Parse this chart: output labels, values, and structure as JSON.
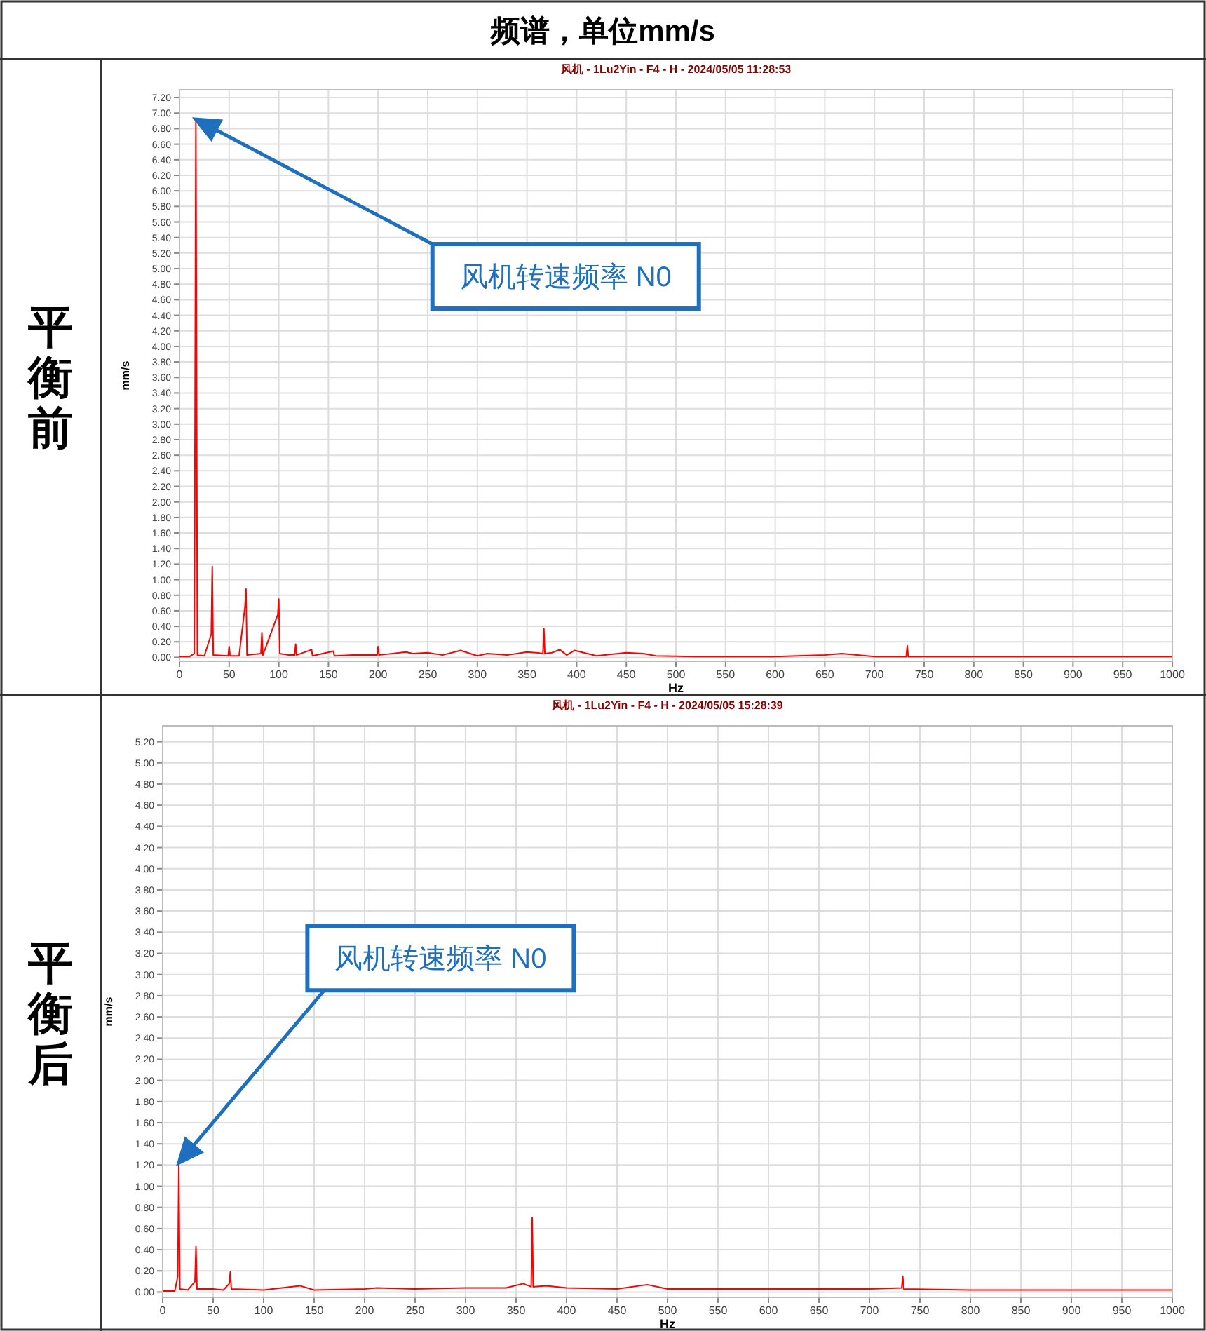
{
  "chart_data": [
    {
      "type": "line",
      "title": "风机 - 1Lu2Yin - F4 - H - 2024/05/05 11:28:53",
      "xlabel": "Hz",
      "ylabel": "mm/s",
      "grid": true,
      "annotations": [
        "频谱，单位mm/s",
        "平衡前",
        "风机转速频率 N0"
      ],
      "xlim": [
        0,
        1000
      ],
      "ylim": [
        -0.05,
        7.3
      ],
      "xticks": [
        0,
        50,
        100,
        150,
        200,
        250,
        300,
        350,
        400,
        450,
        500,
        550,
        600,
        650,
        700,
        750,
        800,
        850,
        900,
        950,
        1000
      ],
      "yticks": [
        {
          "value": 0,
          "label": "0.00"
        },
        {
          "value": 0.2,
          "label": "0.20"
        },
        {
          "value": 0.4,
          "label": "0.40"
        },
        {
          "value": 0.6,
          "label": "0.60"
        },
        {
          "value": 0.8,
          "label": "0.80"
        },
        {
          "value": 1,
          "label": "1.00"
        },
        {
          "value": 1.2,
          "label": "1.20"
        },
        {
          "value": 1.4,
          "label": "1.40"
        },
        {
          "value": 1.6,
          "label": "1.60"
        },
        {
          "value": 1.8,
          "label": "1.80"
        },
        {
          "value": 2,
          "label": "2.00"
        },
        {
          "value": 2.2,
          "label": "2.20"
        },
        {
          "value": 2.4,
          "label": "2.40"
        },
        {
          "value": 2.6,
          "label": "2.60"
        },
        {
          "value": 2.8,
          "label": "2.80"
        },
        {
          "value": 3,
          "label": "3.00"
        },
        {
          "value": 3.2,
          "label": "3.20"
        },
        {
          "value": 3.4,
          "label": "3.40"
        },
        {
          "value": 3.6,
          "label": "3.60"
        },
        {
          "value": 3.8,
          "label": "3.80"
        },
        {
          "value": 4,
          "label": "4.00"
        },
        {
          "value": 4.2,
          "label": "4.20"
        },
        {
          "value": 4.4,
          "label": "4.40"
        },
        {
          "value": 4.6,
          "label": "4.60"
        },
        {
          "value": 4.8,
          "label": "4.80"
        },
        {
          "value": 5,
          "label": "5.00"
        },
        {
          "value": 5.2,
          "label": "5.20"
        },
        {
          "value": 5.4,
          "label": "5.40"
        },
        {
          "value": 5.6,
          "label": "5.60"
        },
        {
          "value": 5.8,
          "label": "5.80"
        },
        {
          "value": 6,
          "label": "6.00"
        },
        {
          "value": 6.2,
          "label": "6.20"
        },
        {
          "value": 6.4,
          "label": "6.40"
        },
        {
          "value": 6.6,
          "label": "6.60"
        },
        {
          "value": 6.8,
          "label": "6.80"
        },
        {
          "value": 7,
          "label": "7.00"
        },
        {
          "value": 7.2,
          "label": "7.20"
        }
      ],
      "series": [
        {
          "color": "#ff0000",
          "x": [
            0,
            10,
            15,
            16.5,
            18,
            25,
            32,
            33,
            34,
            49,
            50,
            51,
            60,
            66,
            67,
            68,
            82,
            83,
            84,
            99,
            100,
            101,
            110,
            116,
            117,
            118,
            133,
            134,
            155,
            156,
            175,
            199,
            200,
            201,
            228,
            235,
            250,
            265,
            283,
            300,
            310,
            330,
            350,
            360,
            366,
            367,
            368,
            375,
            383,
            390,
            398,
            420,
            450,
            467,
            480,
            520,
            600,
            650,
            667,
            700,
            732,
            733,
            734,
            800,
            900,
            1000
          ],
          "values": [
            0.01,
            0.01,
            0.05,
            6.92,
            0.03,
            0.02,
            0.3,
            1.17,
            0.03,
            0.02,
            0.14,
            0.02,
            0.02,
            0.66,
            0.88,
            0.03,
            0.05,
            0.32,
            0.03,
            0.55,
            0.75,
            0.05,
            0.03,
            0.03,
            0.17,
            0.03,
            0.1,
            0.02,
            0.08,
            0.02,
            0.03,
            0.03,
            0.14,
            0.03,
            0.07,
            0.05,
            0.06,
            0.03,
            0.09,
            0.02,
            0.05,
            0.03,
            0.07,
            0.06,
            0.05,
            0.37,
            0.05,
            0.06,
            0.1,
            0.03,
            0.09,
            0.02,
            0.06,
            0.05,
            0.02,
            0.01,
            0.01,
            0.03,
            0.05,
            0.01,
            0.01,
            0.15,
            0.01,
            0.01,
            0.01,
            0.01
          ]
        }
      ]
    },
    {
      "type": "line",
      "title": "风机 - 1Lu2Yin - F4 - H - 2024/05/05 15:28:39",
      "xlabel": "Hz",
      "ylabel": "mm/s",
      "grid": true,
      "annotations": [
        "平衡后",
        "风机转速频率 N0"
      ],
      "xlim": [
        0,
        1000
      ],
      "ylim": [
        -0.05,
        5.35
      ],
      "xticks": [
        0,
        50,
        100,
        150,
        200,
        250,
        300,
        350,
        400,
        450,
        500,
        550,
        600,
        650,
        700,
        750,
        800,
        850,
        900,
        950,
        1000
      ],
      "yticks": [
        {
          "value": 0,
          "label": "0.00"
        },
        {
          "value": 0.2,
          "label": "0.20"
        },
        {
          "value": 0.4,
          "label": "0.40"
        },
        {
          "value": 0.6,
          "label": "0.60"
        },
        {
          "value": 0.8,
          "label": "0.80"
        },
        {
          "value": 1,
          "label": "1.00"
        },
        {
          "value": 1.2,
          "label": "1.20"
        },
        {
          "value": 1.4,
          "label": "1.40"
        },
        {
          "value": 1.6,
          "label": "1.60"
        },
        {
          "value": 1.8,
          "label": "1.80"
        },
        {
          "value": 2,
          "label": "2.00"
        },
        {
          "value": 2.2,
          "label": "2.20"
        },
        {
          "value": 2.4,
          "label": "2.40"
        },
        {
          "value": 2.6,
          "label": "2.60"
        },
        {
          "value": 2.8,
          "label": "2.80"
        },
        {
          "value": 3,
          "label": "3.00"
        },
        {
          "value": 3.2,
          "label": "3.20"
        },
        {
          "value": 3.4,
          "label": "3.40"
        },
        {
          "value": 3.6,
          "label": "3.60"
        },
        {
          "value": 3.8,
          "label": "3.80"
        },
        {
          "value": 4,
          "label": "4.00"
        },
        {
          "value": 4.2,
          "label": "4.20"
        },
        {
          "value": 4.4,
          "label": "4.40"
        },
        {
          "value": 4.6,
          "label": "4.60"
        },
        {
          "value": 4.8,
          "label": "4.80"
        },
        {
          "value": 5,
          "label": "5.00"
        },
        {
          "value": 5.2,
          "label": "5.20"
        }
      ],
      "series": [
        {
          "color": "#ff0000",
          "x": [
            0,
            12,
            15,
            16,
            17,
            25,
            32,
            33,
            34,
            50,
            60,
            66,
            67,
            68,
            100,
            136,
            150,
            200,
            212,
            250,
            300,
            340,
            357,
            365,
            366,
            367,
            380,
            400,
            450,
            480,
            500,
            550,
            650,
            700,
            732,
            733,
            734,
            800,
            900,
            1000
          ],
          "values": [
            0.01,
            0.01,
            0.15,
            1.22,
            0.03,
            0.02,
            0.1,
            0.43,
            0.03,
            0.03,
            0.02,
            0.08,
            0.19,
            0.03,
            0.02,
            0.06,
            0.02,
            0.03,
            0.04,
            0.03,
            0.04,
            0.04,
            0.08,
            0.05,
            0.7,
            0.05,
            0.06,
            0.04,
            0.03,
            0.07,
            0.03,
            0.03,
            0.03,
            0.03,
            0.04,
            0.15,
            0.03,
            0.02,
            0.02,
            0.02
          ]
        }
      ]
    }
  ]
}
